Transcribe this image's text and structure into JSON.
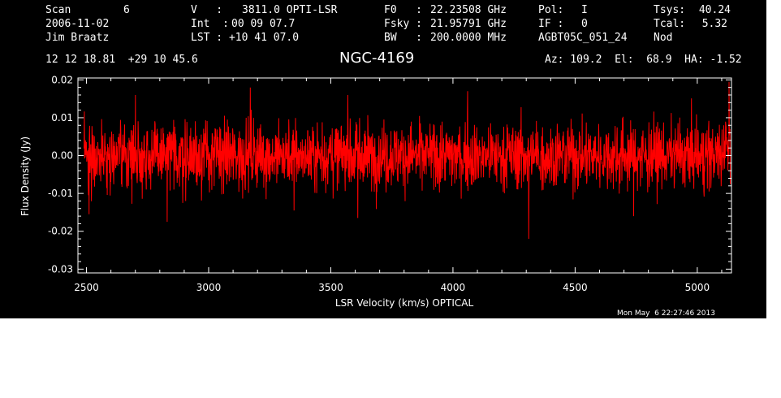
{
  "header": {
    "col1": {
      "scan_label": "Scan",
      "scan_value": "6",
      "date": "2006-11-02",
      "observer": "Jim Braatz"
    },
    "col2": {
      "v_label": "V   :",
      "v_value": "3811.0 OPTI-LSR",
      "int_label": "Int  :",
      "int_value": "00 09 07.7",
      "lst_label": "LST : +10 41 07.0"
    },
    "col3": {
      "f0_label": "F0   :",
      "f0_value": "22.23508 GHz",
      "fsky_label": "Fsky :",
      "fsky_value": "21.95791 GHz",
      "bw_label": "BW   :",
      "bw_value": "200.0000 MHz"
    },
    "col4": {
      "pol_label": "Pol:",
      "pol_value": "I",
      "if_label": "IF :",
      "if_value": "0",
      "project": "AGBT05C_051_24"
    },
    "col5": {
      "tsys_label": "Tsys:",
      "tsys_value": "40.24",
      "tcal_label": "Tcal:",
      "tcal_value": "5.32",
      "mode": "Nod"
    },
    "coords": "12 12 18.81  +29 10 45.6",
    "source": "NGC-4169",
    "az_el_ha": "Az: 109.2  El:  68.9  HA: -1.52",
    "timestamp": "Mon May  6 22:27:46 2013"
  },
  "chart_data": {
    "type": "line",
    "title": "NGC-4169",
    "xlabel": "LSR Velocity (km/s) OPTICAL",
    "ylabel": "Flux Density (Jy)",
    "xlim": [
      2465,
      5140
    ],
    "ylim": [
      -0.031,
      0.0205
    ],
    "x_ticks": [
      2500,
      3000,
      3500,
      4000,
      4500,
      5000
    ],
    "x_tick_labels": [
      "2500",
      "3000",
      "3500",
      "4000",
      "4500",
      "5000"
    ],
    "y_ticks": [
      0.02,
      0.01,
      0.0,
      -0.01,
      -0.02,
      -0.03
    ],
    "y_tick_labels": [
      "0.02",
      "0.01",
      "0.00",
      "-0.01",
      "-0.02",
      "-0.03"
    ],
    "grid": false,
    "series": [
      {
        "color": "#ff0000",
        "x_start": 2490,
        "x_end": 5135,
        "baseline": 0.0,
        "noise_rms": 0.0052,
        "peaks": [
          {
            "x": 2510,
            "y": -0.0155
          },
          {
            "x": 2700,
            "y": 0.016
          },
          {
            "x": 2830,
            "y": -0.0175
          },
          {
            "x": 3170,
            "y": 0.018
          },
          {
            "x": 3350,
            "y": -0.0145
          },
          {
            "x": 3570,
            "y": 0.016
          },
          {
            "x": 3610,
            "y": -0.0165
          },
          {
            "x": 4060,
            "y": 0.017
          },
          {
            "x": 4310,
            "y": -0.022
          },
          {
            "x": 4740,
            "y": -0.016
          },
          {
            "x": 5130,
            "y": 0.0195
          }
        ]
      }
    ]
  }
}
